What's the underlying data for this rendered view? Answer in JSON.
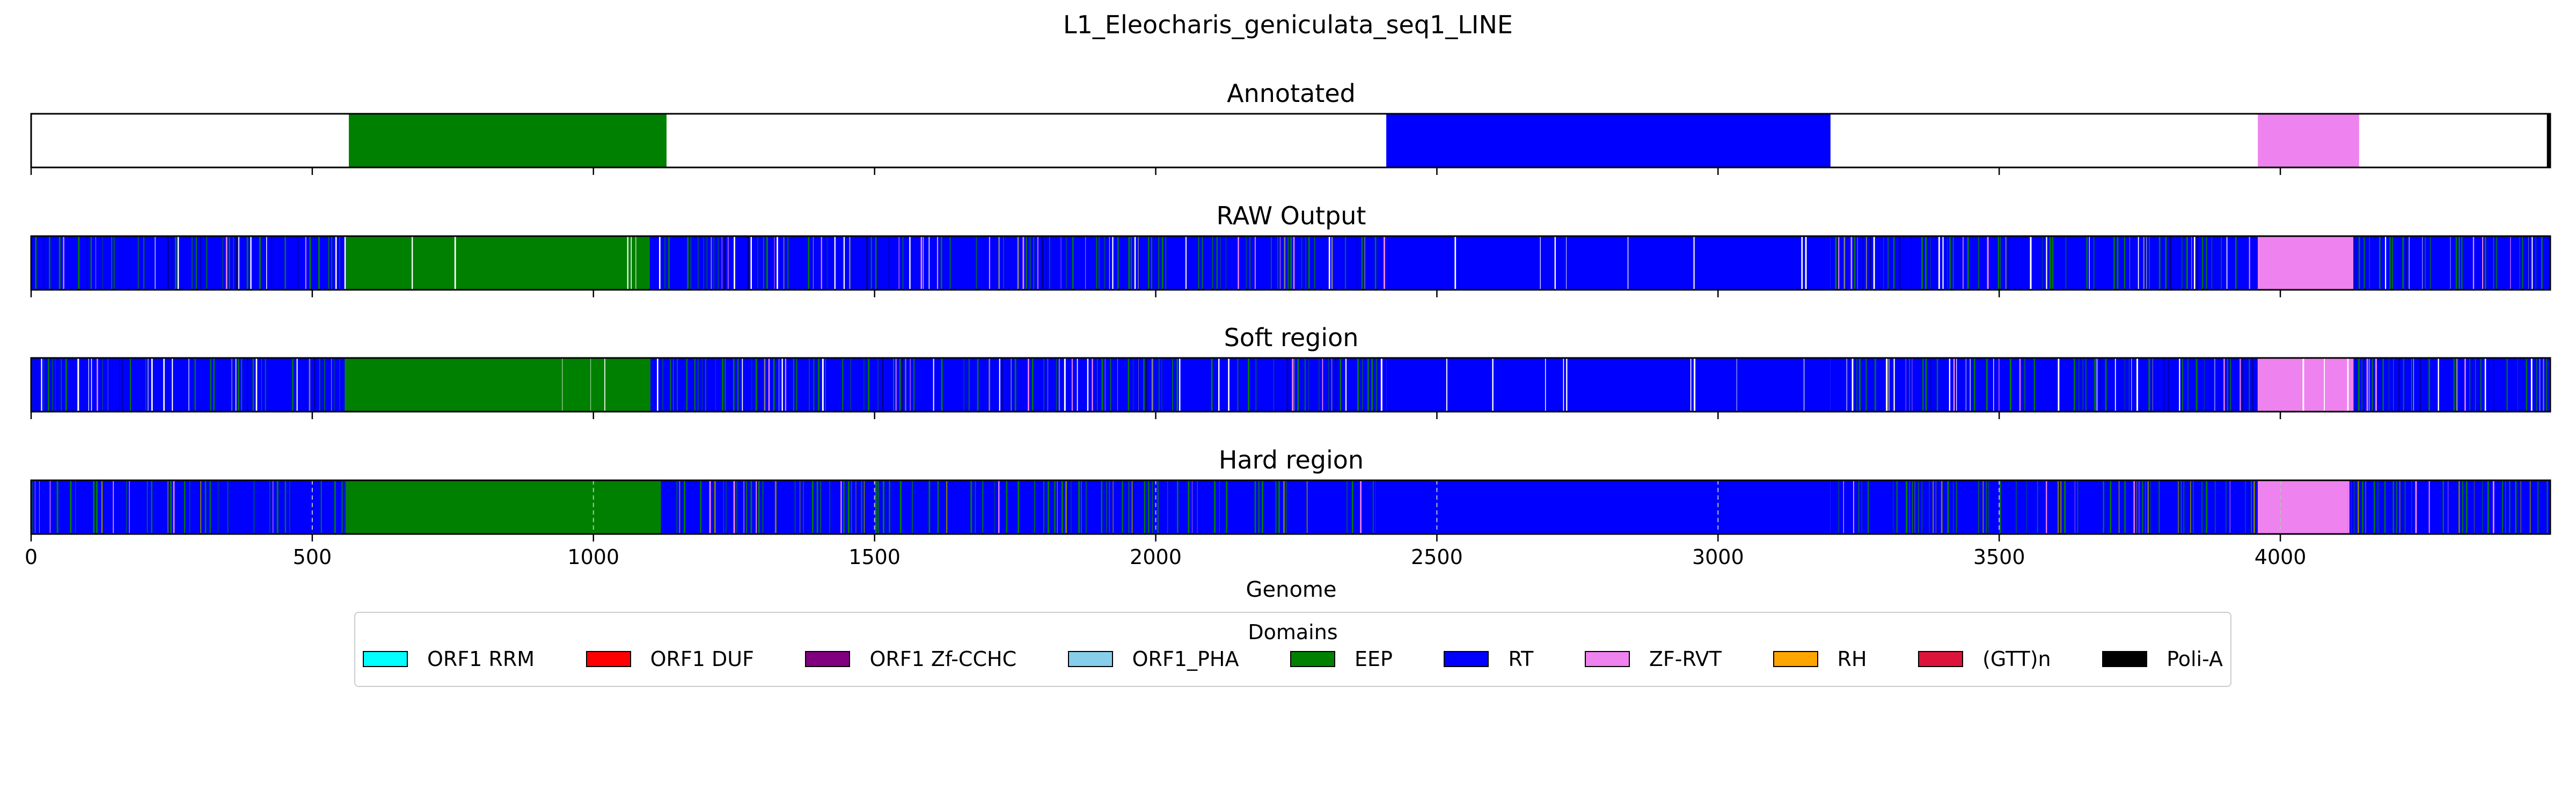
{
  "chart_data": {
    "type": "bar",
    "title": "L1_Eleocharis_geniculata_seq1_LINE",
    "xlabel": "Genome",
    "xlim": [
      0,
      4480
    ],
    "xticks": [
      0,
      500,
      1000,
      1500,
      2000,
      2500,
      3000,
      3500,
      4000
    ],
    "tracks": [
      {
        "name": "Annotated",
        "mode": "annotated",
        "segments": [
          {
            "domain": "EEP",
            "start": 565,
            "end": 1130
          },
          {
            "domain": "RT",
            "start": 2410,
            "end": 3200
          },
          {
            "domain": "ZF-RVT",
            "start": 3960,
            "end": 4140
          },
          {
            "domain": "Poli-A",
            "start": 4474,
            "end": 4480
          }
        ]
      },
      {
        "name": "RAW Output",
        "mode": "raw",
        "regions": [
          {
            "start": 0,
            "end": 560,
            "domain": "RT"
          },
          {
            "start": 560,
            "end": 1100,
            "domain": "EEP"
          },
          {
            "start": 1100,
            "end": 2410,
            "domain": "RT"
          },
          {
            "start": 2410,
            "end": 3200,
            "domain": "RT"
          },
          {
            "start": 3200,
            "end": 3960,
            "domain": "RT"
          },
          {
            "start": 3960,
            "end": 4130,
            "domain": "ZF-RVT"
          },
          {
            "start": 4130,
            "end": 4480,
            "domain": "RT"
          }
        ]
      },
      {
        "name": "Soft region",
        "mode": "raw",
        "regions": [
          {
            "start": 0,
            "end": 560,
            "domain": "RT"
          },
          {
            "start": 560,
            "end": 1100,
            "domain": "EEP"
          },
          {
            "start": 1100,
            "end": 2410,
            "domain": "RT"
          },
          {
            "start": 2410,
            "end": 3200,
            "domain": "RT"
          },
          {
            "start": 3200,
            "end": 3960,
            "domain": "RT"
          },
          {
            "start": 3960,
            "end": 4130,
            "domain": "ZF-RVT"
          },
          {
            "start": 4130,
            "end": 4480,
            "domain": "RT"
          }
        ]
      },
      {
        "name": "Hard region",
        "mode": "hard",
        "regions": [
          {
            "start": 0,
            "end": 560,
            "domain": "RT"
          },
          {
            "start": 560,
            "end": 1120,
            "domain": "EEP"
          },
          {
            "start": 1120,
            "end": 2390,
            "domain": "RT"
          },
          {
            "start": 2390,
            "end": 3200,
            "domain": "RT"
          },
          {
            "start": 3200,
            "end": 3960,
            "domain": "RT"
          },
          {
            "start": 3960,
            "end": 4120,
            "domain": "ZF-RVT"
          },
          {
            "start": 4120,
            "end": 4480,
            "domain": "RT"
          }
        ]
      }
    ],
    "legend": {
      "title": "Domains",
      "placement": "bottom-center",
      "items": [
        {
          "label": "ORF1 RRM",
          "color": "#00ffff"
        },
        {
          "label": "ORF1 DUF",
          "color": "#ff0000"
        },
        {
          "label": "ORF1 Zf-CCHC",
          "color": "#800080"
        },
        {
          "label": "ORF1_PHA",
          "color": "#87ceeb"
        },
        {
          "label": "EEP",
          "color": "#008000"
        },
        {
          "label": "RT",
          "color": "#0000ff"
        },
        {
          "label": "ZF-RVT",
          "color": "#ee82ee"
        },
        {
          "label": "RH",
          "color": "#ffa500"
        },
        {
          "label": "(GTT)n",
          "color": "#dc143c"
        },
        {
          "label": "Poli-A",
          "color": "#000000"
        }
      ]
    },
    "grid": {
      "hard_region": true
    }
  }
}
